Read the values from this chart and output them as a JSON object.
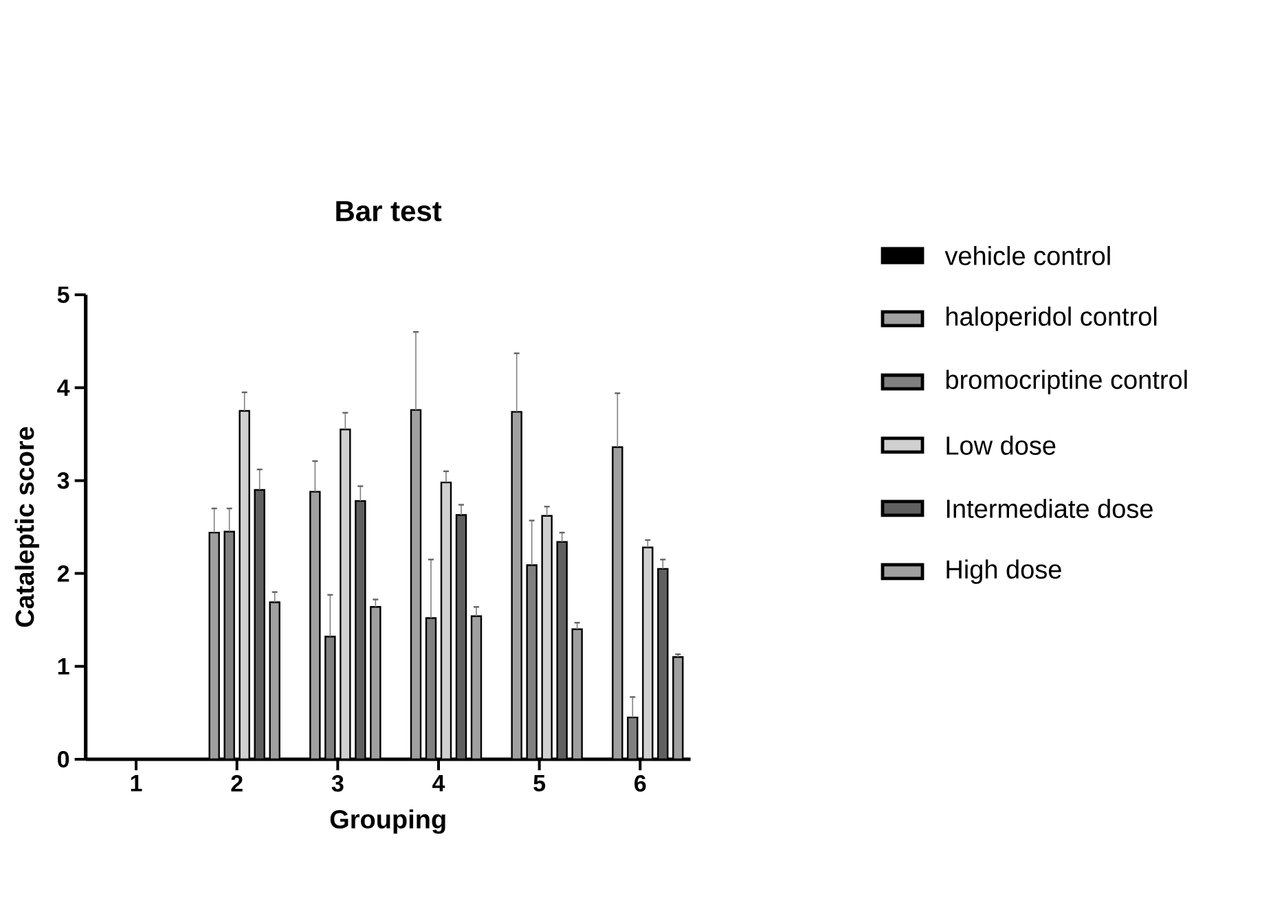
{
  "chart_data": {
    "type": "bar",
    "title": "Bar test",
    "xlabel": "Grouping",
    "ylabel": "Cataleptic score",
    "categories": [
      "1",
      "2",
      "3",
      "4",
      "5",
      "6"
    ],
    "ylim": [
      0,
      5
    ],
    "yticks": [
      0,
      1,
      2,
      3,
      4,
      5
    ],
    "legend": "right",
    "series": [
      {
        "name": "vehicle control",
        "color": "#000000",
        "values": [
          null,
          null,
          null,
          null,
          null,
          null
        ]
      },
      {
        "name": "haloperidol control",
        "color": "#a0a0a0",
        "values": [
          null,
          2.44,
          2.88,
          3.76,
          3.74,
          3.36
        ],
        "errors": [
          null,
          [
            2.44,
            2.7
          ],
          [
            2.88,
            3.21
          ],
          [
            3.76,
            4.6
          ],
          [
            3.74,
            4.37
          ],
          [
            3.36,
            3.94
          ]
        ]
      },
      {
        "name": "bromocriptine control",
        "color": "#808080",
        "values": [
          null,
          2.45,
          1.32,
          1.52,
          2.09,
          0.45
        ],
        "errors": [
          null,
          [
            2.45,
            2.7
          ],
          [
            1.32,
            1.77
          ],
          [
            1.52,
            2.15
          ],
          [
            2.09,
            2.57
          ],
          [
            0.45,
            0.67
          ]
        ]
      },
      {
        "name": "Low dose",
        "color": "#d0d0d0",
        "values": [
          null,
          3.75,
          3.55,
          2.98,
          2.62,
          2.28
        ],
        "errors": [
          null,
          [
            3.75,
            3.95
          ],
          [
            3.55,
            3.73
          ],
          [
            2.98,
            3.1
          ],
          [
            2.62,
            2.72
          ],
          [
            2.28,
            2.36
          ]
        ]
      },
      {
        "name": "Intermediate dose",
        "color": "#606060",
        "values": [
          null,
          2.9,
          2.78,
          2.63,
          2.34,
          2.05
        ],
        "errors": [
          null,
          [
            2.9,
            3.12
          ],
          [
            2.78,
            2.94
          ],
          [
            2.63,
            2.74
          ],
          [
            2.34,
            2.44
          ],
          [
            2.05,
            2.15
          ]
        ]
      },
      {
        "name": "High dose",
        "color": "#a0a0a0",
        "values": [
          null,
          1.69,
          1.64,
          1.54,
          1.4,
          1.1
        ],
        "errors": [
          null,
          [
            1.69,
            1.8
          ],
          [
            1.64,
            1.72
          ],
          [
            1.54,
            1.64
          ],
          [
            1.4,
            1.47
          ],
          [
            1.1,
            1.13
          ]
        ]
      }
    ]
  }
}
